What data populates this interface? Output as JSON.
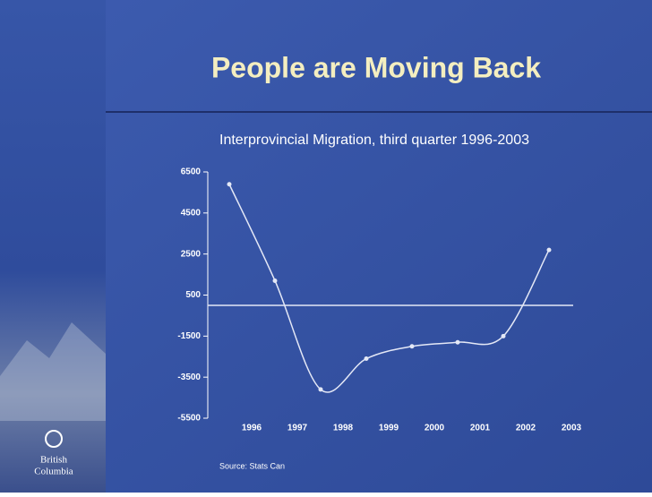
{
  "chart_data": {
    "type": "line",
    "title": "People are Moving Back",
    "subtitle": "Interprovincial Migration, third quarter 1996-2003",
    "source": "Source: Stats Can",
    "logo": {
      "line1": "British",
      "line2": "Columbia"
    },
    "categories": [
      "1996",
      "1997",
      "1998",
      "1999",
      "2000",
      "2001",
      "2002",
      "2003"
    ],
    "series": [
      {
        "name": "Interprovincial Migration",
        "color": "#e4e8f6",
        "values": [
          5900,
          1200,
          -4100,
          -2600,
          -2000,
          -1800,
          -1500,
          2700
        ]
      }
    ],
    "ylim": [
      -5500,
      6500
    ],
    "yticks": [
      6500,
      4500,
      2500,
      500,
      -1500,
      -3500,
      -5500
    ],
    "zero_line": true
  }
}
